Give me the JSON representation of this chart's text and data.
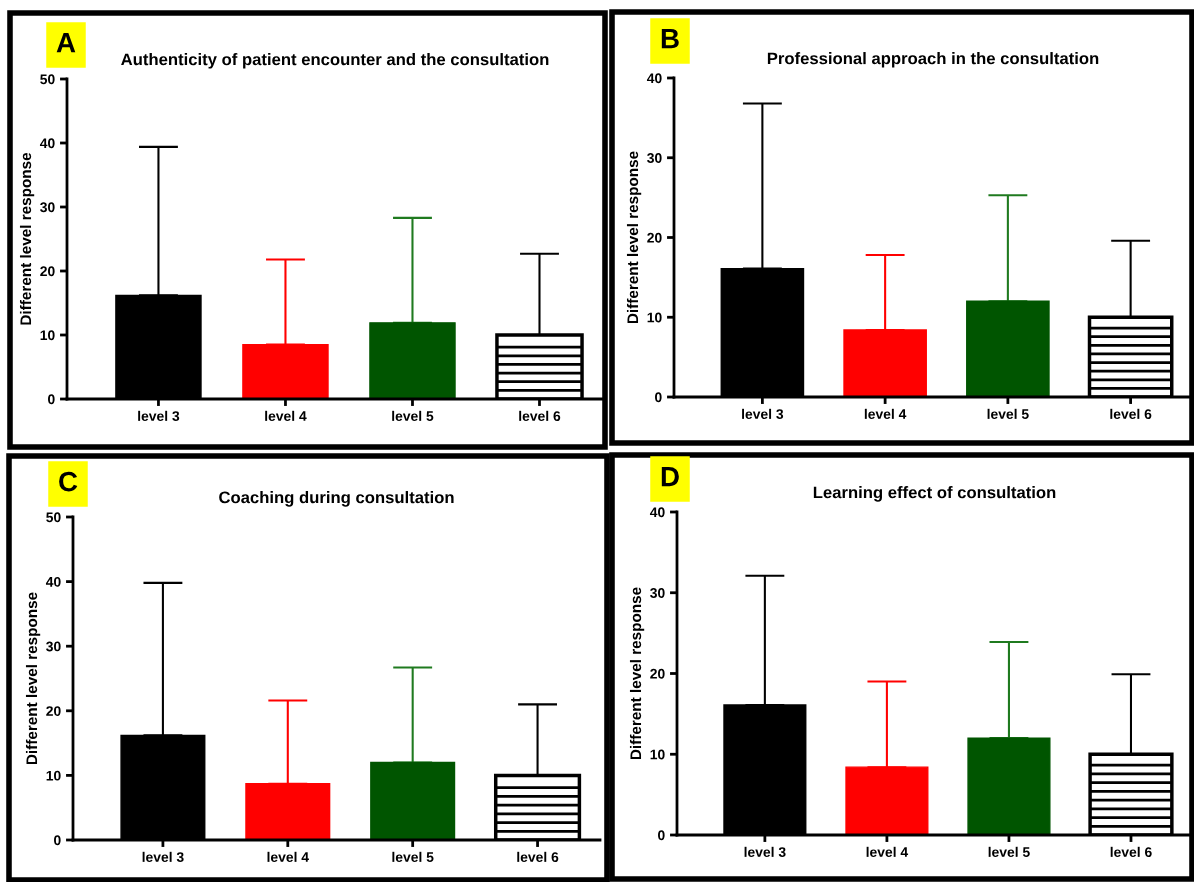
{
  "chart_data": [
    {
      "type": "bar",
      "title": "Authenticity of patient encounter and the consultation",
      "ylabel": "Different level response",
      "annotations": [
        "A"
      ],
      "categories": [
        "level 3",
        "level 4",
        "level 5",
        "level 6"
      ],
      "values": [
        16.2,
        8.5,
        11.9,
        10
      ],
      "colors": [
        "#000000",
        "#ff0000",
        "#005500",
        "#ffffff"
      ],
      "errors": [
        [
          16.2,
          39.4
        ],
        [
          8.5,
          21.8
        ],
        [
          11.9,
          28.3
        ],
        [
          10,
          22.7
        ]
      ],
      "ylim": [
        0,
        50
      ],
      "yticks": [
        0,
        10,
        20,
        30,
        40,
        50
      ],
      "grid": false
    },
    {
      "type": "bar",
      "title": "Professional approach in the consultation",
      "ylabel": "Different level response",
      "annotations": [
        "B"
      ],
      "categories": [
        "level 3",
        "level 4",
        "level 5",
        "level 6"
      ],
      "values": [
        16.1,
        8.4,
        12,
        10
      ],
      "colors": [
        "#000000",
        "#ff0000",
        "#005500",
        "#ffffff"
      ],
      "errors": [
        [
          16.1,
          36.8
        ],
        [
          8.4,
          17.8
        ],
        [
          12,
          25.3
        ],
        [
          10,
          19.6
        ]
      ],
      "ylim": [
        0,
        40
      ],
      "yticks": [
        0,
        10,
        20,
        30,
        40
      ],
      "grid": false
    },
    {
      "type": "bar",
      "title": "Coaching during consultation",
      "ylabel": "Different level response",
      "annotations": [
        "C"
      ],
      "categories": [
        "level 3",
        "level 4",
        "level 5",
        "level 6"
      ],
      "values": [
        16.2,
        8.7,
        12,
        10
      ],
      "colors": [
        "#000000",
        "#ff0000",
        "#005500",
        "#ffffff"
      ],
      "errors": [
        [
          16.2,
          39.8
        ],
        [
          8.7,
          21.6
        ],
        [
          12,
          26.7
        ],
        [
          10,
          21
        ]
      ],
      "ylim": [
        0,
        50
      ],
      "yticks": [
        0,
        10,
        20,
        30,
        40,
        50
      ],
      "grid": false
    },
    {
      "type": "bar",
      "title": "Learning effect of consultation",
      "ylabel": "Different level response",
      "annotations": [
        "D"
      ],
      "categories": [
        "level 3",
        "level 4",
        "level 5",
        "level 6"
      ],
      "values": [
        16.1,
        8.4,
        12,
        10
      ],
      "colors": [
        "#000000",
        "#ff0000",
        "#005500",
        "#ffffff"
      ],
      "errors": [
        [
          16.1,
          32.1
        ],
        [
          8.4,
          19
        ],
        [
          12,
          23.9
        ],
        [
          10,
          19.9
        ]
      ],
      "ylim": [
        0,
        40
      ],
      "yticks": [
        0,
        10,
        20,
        30,
        40
      ],
      "grid": false
    }
  ]
}
